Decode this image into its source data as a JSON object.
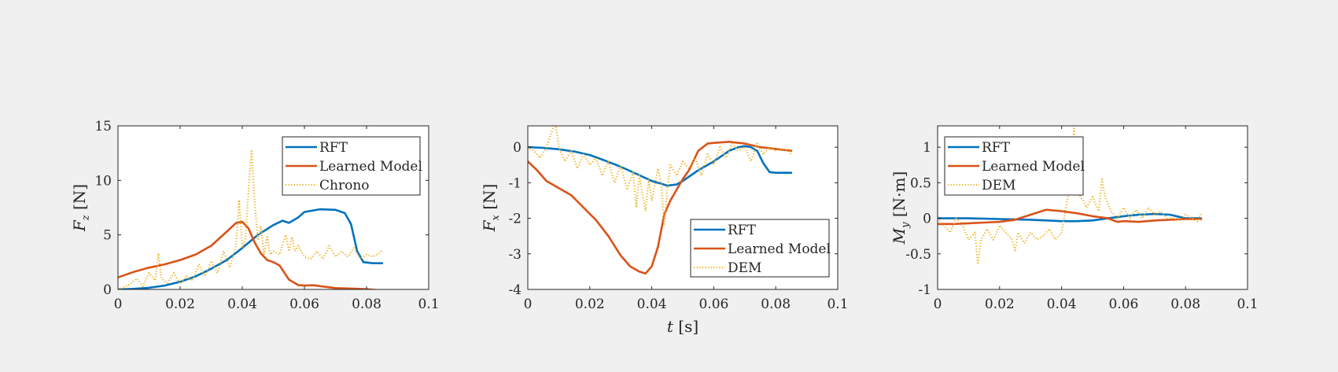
{
  "figure": {
    "background": "#f0f0f0",
    "colors": {
      "RFT": "#0072bd",
      "Learned Model": "#d95319",
      "Chrono": "#edb120",
      "DEM": "#edb120",
      "axis": "#262626"
    }
  },
  "chart_data": [
    {
      "type": "line",
      "title": "",
      "xlabel": "",
      "ylabel": "F_z [N]",
      "ylabel_parts": {
        "var": "F",
        "sub": "z",
        "unit": " [N]"
      },
      "xlim": [
        0,
        0.1
      ],
      "ylim": [
        0,
        15
      ],
      "xticks": [
        0,
        0.02,
        0.04,
        0.06,
        0.08,
        0.1
      ],
      "xtick_labels": [
        "0",
        "0.02",
        "0.04",
        "0.06",
        "0.08",
        "0.1"
      ],
      "yticks": [
        0,
        5,
        10,
        15
      ],
      "ytick_labels": [
        "0",
        "5",
        "10",
        "15"
      ],
      "grid": false,
      "legend": "top-right",
      "series": [
        {
          "name": "RFT",
          "style": "solid",
          "color": "#0072bd",
          "x": [
            0,
            0.005,
            0.01,
            0.015,
            0.02,
            0.025,
            0.03,
            0.035,
            0.04,
            0.045,
            0.05,
            0.053,
            0.055,
            0.058,
            0.06,
            0.065,
            0.07,
            0.073,
            0.075,
            0.077,
            0.079,
            0.082,
            0.085
          ],
          "y": [
            0,
            0.05,
            0.15,
            0.35,
            0.7,
            1.2,
            1.9,
            2.7,
            3.8,
            5.0,
            5.9,
            6.3,
            6.1,
            6.6,
            7.1,
            7.35,
            7.3,
            7.0,
            6.0,
            3.5,
            2.5,
            2.4,
            2.4
          ]
        },
        {
          "name": "Learned Model",
          "style": "solid",
          "color": "#d95319",
          "x": [
            0,
            0.005,
            0.01,
            0.015,
            0.02,
            0.025,
            0.03,
            0.035,
            0.038,
            0.04,
            0.042,
            0.044,
            0.046,
            0.048,
            0.05,
            0.052,
            0.055,
            0.058,
            0.06,
            0.063,
            0.065,
            0.07,
            0.075,
            0.08,
            0.085
          ],
          "y": [
            1.1,
            1.6,
            2.0,
            2.3,
            2.7,
            3.2,
            4.0,
            5.3,
            6.1,
            6.2,
            5.6,
            4.3,
            3.3,
            2.7,
            2.5,
            2.2,
            0.9,
            0.4,
            0.35,
            0.38,
            0.3,
            0.12,
            0.08,
            0.02,
            -0.1
          ]
        },
        {
          "name": "Chrono",
          "style": "dotted",
          "color": "#edb120",
          "x": [
            0,
            0.002,
            0.004,
            0.006,
            0.008,
            0.01,
            0.012,
            0.013,
            0.014,
            0.016,
            0.018,
            0.02,
            0.022,
            0.024,
            0.026,
            0.028,
            0.03,
            0.032,
            0.034,
            0.036,
            0.038,
            0.039,
            0.04,
            0.041,
            0.042,
            0.043,
            0.044,
            0.045,
            0.046,
            0.047,
            0.048,
            0.049,
            0.05,
            0.052,
            0.054,
            0.055,
            0.056,
            0.057,
            0.058,
            0.06,
            0.062,
            0.064,
            0.066,
            0.068,
            0.07,
            0.072,
            0.074,
            0.076,
            0.078,
            0.08,
            0.082,
            0.084,
            0.085
          ],
          "y": [
            0,
            0.2,
            0.5,
            1.0,
            0.3,
            1.5,
            0.8,
            3.3,
            1.0,
            0.6,
            1.5,
            0.5,
            1.2,
            0.8,
            2.3,
            1.2,
            2.6,
            1.5,
            3.5,
            2.0,
            4.0,
            8.2,
            3.8,
            4.5,
            9.0,
            12.8,
            8.0,
            4.5,
            5.8,
            3.2,
            4.8,
            3.2,
            3.5,
            3.2,
            5.0,
            3.5,
            4.8,
            3.5,
            4.0,
            3.0,
            2.8,
            3.5,
            2.8,
            4.0,
            3.0,
            3.5,
            3.0,
            3.8,
            2.8,
            3.2,
            3.0,
            3.3,
            3.6
          ]
        }
      ]
    },
    {
      "type": "line",
      "title": "",
      "xlabel": "t [s]",
      "xlabel_parts": {
        "var": "t",
        "unit": " [s]"
      },
      "ylabel": "F_x [N]",
      "ylabel_parts": {
        "var": "F",
        "sub": "x",
        "unit": " [N]"
      },
      "xlim": [
        0,
        0.1
      ],
      "ylim": [
        -4,
        0.6
      ],
      "xticks": [
        0,
        0.02,
        0.04,
        0.06,
        0.08,
        0.1
      ],
      "xtick_labels": [
        "0",
        "0.02",
        "0.04",
        "0.06",
        "0.08",
        "0.1"
      ],
      "yticks": [
        -4,
        -3,
        -2,
        -1,
        0
      ],
      "ytick_labels": [
        "-4",
        "-3",
        "-2",
        "-1",
        "0"
      ],
      "grid": false,
      "legend": "bottom-right",
      "series": [
        {
          "name": "RFT",
          "style": "solid",
          "color": "#0072bd",
          "x": [
            0,
            0.005,
            0.01,
            0.015,
            0.02,
            0.025,
            0.03,
            0.035,
            0.04,
            0.045,
            0.048,
            0.05,
            0.055,
            0.06,
            0.065,
            0.068,
            0.07,
            0.072,
            0.074,
            0.076,
            0.078,
            0.08,
            0.085
          ],
          "y": [
            0,
            -0.02,
            -0.06,
            -0.12,
            -0.22,
            -0.38,
            -0.55,
            -0.75,
            -0.95,
            -1.08,
            -1.05,
            -0.95,
            -0.65,
            -0.4,
            -0.1,
            0.0,
            0.03,
            0.0,
            -0.1,
            -0.45,
            -0.7,
            -0.72,
            -0.72
          ]
        },
        {
          "name": "Learned Model",
          "style": "solid",
          "color": "#d95319",
          "x": [
            0,
            0.003,
            0.006,
            0.01,
            0.014,
            0.018,
            0.022,
            0.026,
            0.03,
            0.033,
            0.036,
            0.038,
            0.04,
            0.042,
            0.044,
            0.046,
            0.048,
            0.05,
            0.052,
            0.055,
            0.058,
            0.06,
            0.065,
            0.07,
            0.075,
            0.08,
            0.085
          ],
          "y": [
            -0.4,
            -0.65,
            -0.95,
            -1.15,
            -1.35,
            -1.7,
            -2.05,
            -2.5,
            -3.05,
            -3.35,
            -3.5,
            -3.55,
            -3.35,
            -2.8,
            -1.9,
            -1.5,
            -1.2,
            -0.9,
            -0.65,
            -0.1,
            0.1,
            0.12,
            0.15,
            0.1,
            0.0,
            -0.05,
            -0.1
          ]
        },
        {
          "name": "DEM",
          "style": "dotted",
          "color": "#edb120",
          "x": [
            0,
            0.002,
            0.004,
            0.006,
            0.008,
            0.009,
            0.01,
            0.012,
            0.014,
            0.016,
            0.018,
            0.02,
            0.022,
            0.024,
            0.026,
            0.028,
            0.03,
            0.032,
            0.034,
            0.035,
            0.036,
            0.038,
            0.039,
            0.04,
            0.042,
            0.043,
            0.044,
            0.045,
            0.046,
            0.048,
            0.05,
            0.052,
            0.054,
            0.056,
            0.058,
            0.06,
            0.062,
            0.064,
            0.066,
            0.068,
            0.07,
            0.072,
            0.074,
            0.076,
            0.078,
            0.08,
            0.082,
            0.084,
            0.085
          ],
          "y": [
            0,
            -0.1,
            -0.3,
            0.0,
            0.5,
            0.65,
            0.0,
            -0.4,
            -0.1,
            -0.6,
            -0.2,
            -0.5,
            -0.3,
            -0.8,
            -0.4,
            -1.0,
            -0.5,
            -1.2,
            -0.7,
            -1.7,
            -0.8,
            -1.8,
            -0.9,
            -1.5,
            -0.6,
            -1.0,
            -2.2,
            -1.2,
            -0.5,
            -0.8,
            -0.4,
            -0.6,
            -0.3,
            -0.8,
            -0.2,
            -0.5,
            0.0,
            -0.3,
            0.1,
            -0.1,
            0.0,
            -0.4,
            0.1,
            -0.2,
            0.0,
            -0.1,
            -0.05,
            -0.1,
            -0.2
          ]
        }
      ]
    },
    {
      "type": "line",
      "title": "",
      "xlabel": "",
      "ylabel": "M_y [N·m]",
      "ylabel_parts": {
        "var": "M",
        "sub": "y",
        "unit": " [N·m]"
      },
      "xlim": [
        0,
        0.1
      ],
      "ylim": [
        -1,
        1.3
      ],
      "xticks": [
        0,
        0.02,
        0.04,
        0.06,
        0.08,
        0.1
      ],
      "xtick_labels": [
        "0",
        "0.02",
        "0.04",
        "0.06",
        "0.08",
        "0.1"
      ],
      "yticks": [
        -1,
        -0.5,
        0,
        0.5,
        1
      ],
      "ytick_labels": [
        "-1",
        "-0.5",
        "0",
        "0.5",
        "1"
      ],
      "grid": false,
      "legend": "top-left",
      "series": [
        {
          "name": "RFT",
          "style": "solid",
          "color": "#0072bd",
          "x": [
            0,
            0.01,
            0.02,
            0.03,
            0.04,
            0.045,
            0.05,
            0.055,
            0.06,
            0.065,
            0.07,
            0.075,
            0.078,
            0.08,
            0.085
          ],
          "y": [
            0,
            0,
            -0.01,
            -0.02,
            -0.04,
            -0.04,
            -0.03,
            0.0,
            0.03,
            0.05,
            0.06,
            0.05,
            0.02,
            0.0,
            0.0
          ]
        },
        {
          "name": "Learned Model",
          "style": "solid",
          "color": "#d95319",
          "x": [
            0,
            0.005,
            0.01,
            0.015,
            0.02,
            0.025,
            0.03,
            0.035,
            0.04,
            0.045,
            0.05,
            0.055,
            0.058,
            0.06,
            0.065,
            0.07,
            0.075,
            0.08,
            0.085
          ],
          "y": [
            -0.08,
            -0.08,
            -0.07,
            -0.06,
            -0.05,
            -0.02,
            0.05,
            0.12,
            0.1,
            0.07,
            0.03,
            0.0,
            -0.05,
            -0.04,
            -0.05,
            -0.03,
            -0.02,
            -0.01,
            -0.01
          ]
        },
        {
          "name": "DEM",
          "style": "dotted",
          "color": "#edb120",
          "x": [
            0,
            0.002,
            0.004,
            0.006,
            0.008,
            0.01,
            0.012,
            0.013,
            0.014,
            0.016,
            0.018,
            0.02,
            0.022,
            0.024,
            0.025,
            0.026,
            0.028,
            0.03,
            0.032,
            0.034,
            0.036,
            0.038,
            0.04,
            0.042,
            0.043,
            0.044,
            0.045,
            0.046,
            0.047,
            0.048,
            0.05,
            0.052,
            0.053,
            0.054,
            0.056,
            0.058,
            0.06,
            0.062,
            0.064,
            0.066,
            0.068,
            0.07,
            0.072,
            0.074,
            0.076,
            0.078,
            0.08,
            0.082,
            0.084,
            0.085
          ],
          "y": [
            0,
            -0.1,
            -0.2,
            0.0,
            -0.1,
            -0.3,
            -0.2,
            -0.65,
            -0.3,
            -0.15,
            -0.3,
            -0.1,
            -0.2,
            -0.3,
            -0.45,
            -0.2,
            -0.35,
            -0.2,
            -0.3,
            -0.25,
            -0.15,
            -0.3,
            -0.2,
            0.3,
            0.6,
            1.3,
            0.5,
            0.3,
            0.25,
            0.15,
            0.3,
            0.1,
            0.55,
            0.3,
            0.1,
            0.0,
            0.15,
            0.0,
            0.12,
            0.0,
            0.15,
            0.05,
            0.1,
            0.0,
            0.0,
            -0.02,
            0.05,
            0.0,
            -0.05,
            0.08
          ]
        }
      ]
    }
  ]
}
